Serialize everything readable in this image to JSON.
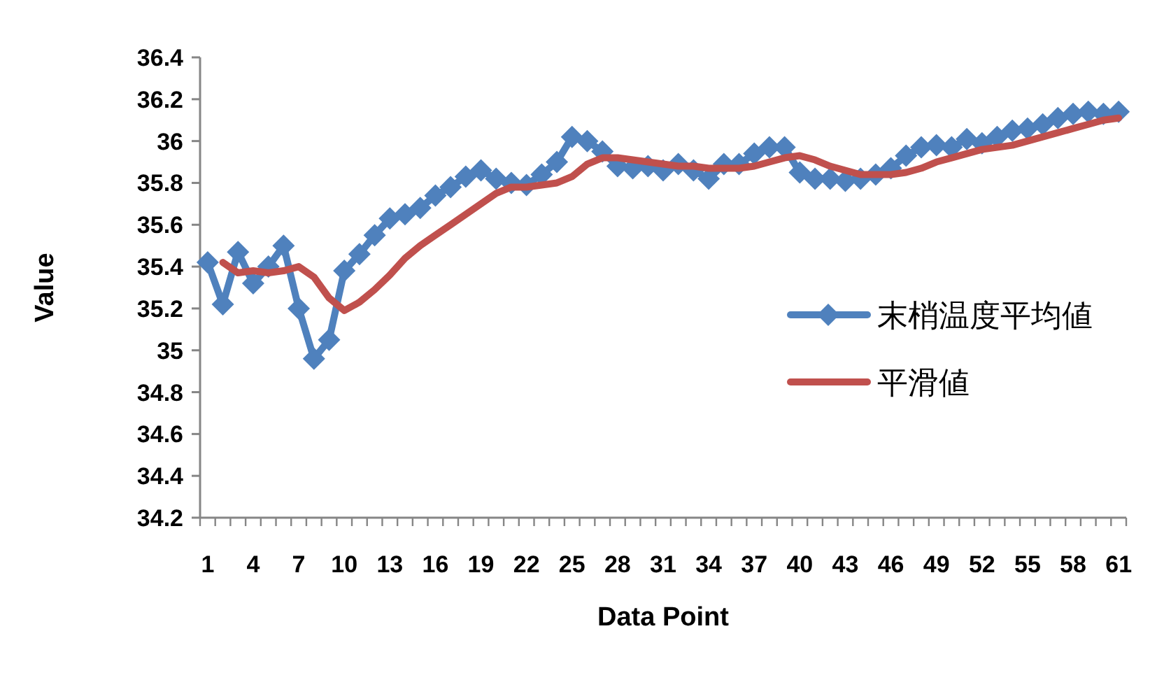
{
  "chart_data": {
    "type": "line",
    "xlabel": "Data Point",
    "ylabel": "Value",
    "categories": [
      "1",
      null,
      null,
      "4",
      null,
      null,
      "7",
      null,
      null,
      "10",
      null,
      null,
      "13",
      null,
      null,
      "16",
      null,
      null,
      "19",
      null,
      null,
      "22",
      null,
      null,
      "25",
      null,
      null,
      "28",
      null,
      null,
      "31",
      null,
      null,
      "34",
      null,
      null,
      "37",
      null,
      null,
      "40",
      null,
      null,
      "43",
      null,
      null,
      "46",
      null,
      null,
      "49",
      null,
      null,
      "52",
      null,
      null,
      "55",
      null,
      null,
      "58",
      null,
      null,
      "61"
    ],
    "series": [
      {
        "name": "末梢温度平均値",
        "color": "#4f81bd",
        "marker": "diamond",
        "values": [
          35.42,
          35.22,
          35.47,
          35.32,
          35.4,
          35.5,
          35.2,
          34.96,
          35.05,
          35.38,
          35.46,
          35.55,
          35.63,
          35.65,
          35.68,
          35.74,
          35.78,
          35.83,
          35.86,
          35.82,
          35.8,
          35.79,
          35.84,
          35.9,
          36.02,
          36.0,
          35.95,
          35.88,
          35.87,
          35.88,
          35.86,
          35.89,
          35.86,
          35.82,
          35.89,
          35.89,
          35.94,
          35.97,
          35.97,
          35.85,
          35.82,
          35.82,
          35.81,
          35.82,
          35.84,
          35.87,
          35.93,
          35.97,
          35.98,
          35.97,
          36.01,
          35.99,
          36.02,
          36.05,
          36.06,
          36.08,
          36.11,
          36.13,
          36.14,
          36.13,
          36.14
        ]
      },
      {
        "name": "平滑値",
        "color": "#c0504d",
        "marker": "none",
        "values": [
          null,
          35.42,
          35.37,
          35.38,
          35.37,
          35.38,
          35.4,
          35.35,
          35.25,
          35.19,
          35.23,
          35.29,
          35.36,
          35.44,
          35.5,
          35.55,
          35.6,
          35.65,
          35.7,
          35.75,
          35.78,
          35.78,
          35.79,
          35.8,
          35.83,
          35.89,
          35.92,
          35.92,
          35.91,
          35.9,
          35.89,
          35.88,
          35.88,
          35.87,
          35.87,
          35.87,
          35.88,
          35.9,
          35.92,
          35.93,
          35.91,
          35.88,
          35.86,
          35.84,
          35.84,
          35.84,
          35.85,
          35.87,
          35.9,
          35.92,
          35.94,
          35.96,
          35.97,
          35.98,
          36.0,
          36.02,
          36.04,
          36.06,
          36.08,
          36.1,
          36.11
        ]
      }
    ],
    "ylim": [
      34.2,
      36.4
    ],
    "yticks": [
      34.2,
      34.4,
      34.6,
      34.8,
      35,
      35.2,
      35.4,
      35.6,
      35.8,
      36,
      36.2,
      36.4
    ],
    "legend": "right"
  }
}
